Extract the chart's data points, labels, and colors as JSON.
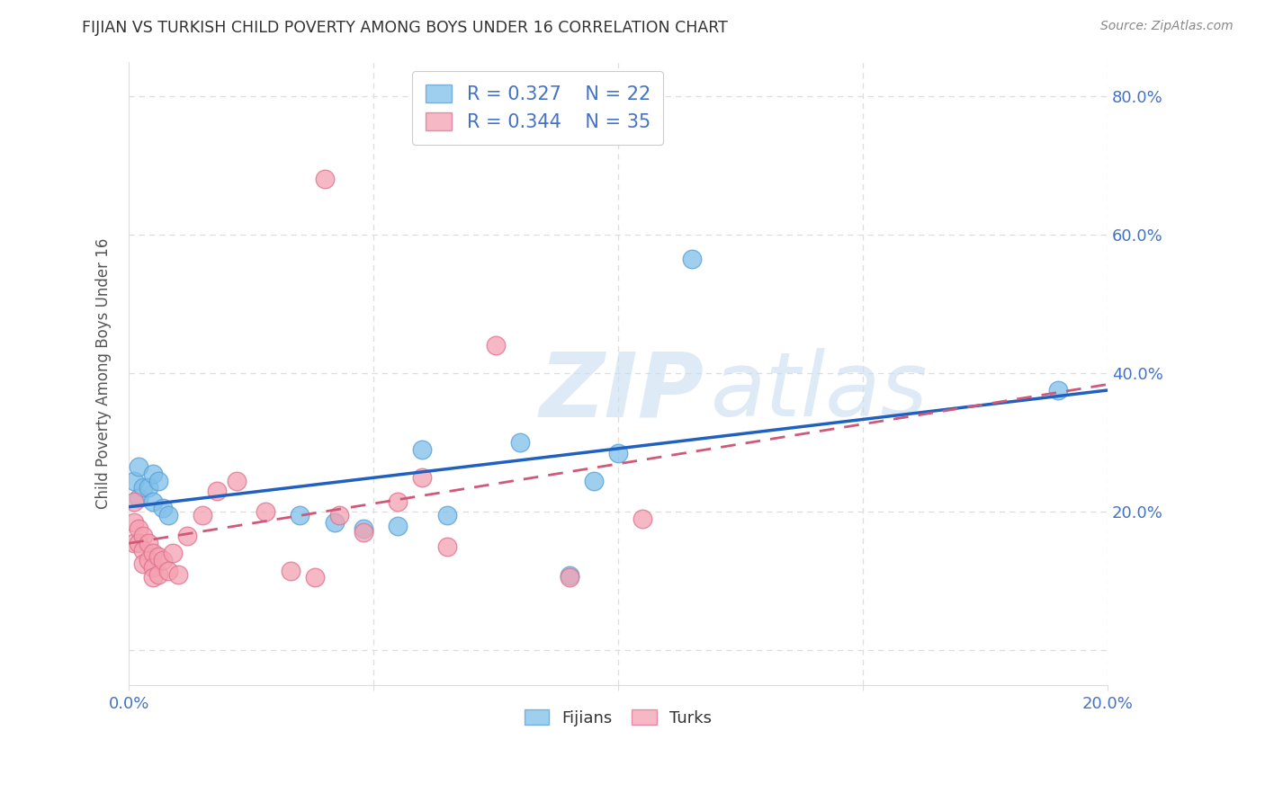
{
  "title": "FIJIAN VS TURKISH CHILD POVERTY AMONG BOYS UNDER 16 CORRELATION CHART",
  "source": "Source: ZipAtlas.com",
  "ylabel": "Child Poverty Among Boys Under 16",
  "background_color": "#ffffff",
  "fijian_color": "#7fbfea",
  "fijian_color_edge": "#5a9fd4",
  "turkish_color": "#f4a0b0",
  "turkish_color_edge": "#e07090",
  "fijian_line_color": "#2060c0",
  "turkish_line_color": "#d05878",
  "legend_fijian_R": "0.327",
  "legend_fijian_N": "22",
  "legend_turkish_R": "0.344",
  "legend_turkish_N": "35",
  "fijian_x": [
    0.001,
    0.002,
    0.002,
    0.003,
    0.004,
    0.005,
    0.005,
    0.006,
    0.007,
    0.008,
    0.035,
    0.042,
    0.048,
    0.055,
    0.06,
    0.065,
    0.08,
    0.09,
    0.095,
    0.1,
    0.115,
    0.19
  ],
  "fijian_y": [
    0.245,
    0.22,
    0.265,
    0.235,
    0.235,
    0.215,
    0.255,
    0.245,
    0.205,
    0.195,
    0.195,
    0.185,
    0.175,
    0.18,
    0.29,
    0.195,
    0.3,
    0.108,
    0.245,
    0.285,
    0.565,
    0.375
  ],
  "turkish_x": [
    0.001,
    0.001,
    0.001,
    0.002,
    0.002,
    0.003,
    0.003,
    0.003,
    0.004,
    0.004,
    0.005,
    0.005,
    0.005,
    0.006,
    0.006,
    0.007,
    0.008,
    0.009,
    0.01,
    0.012,
    0.015,
    0.018,
    0.022,
    0.028,
    0.033,
    0.038,
    0.043,
    0.048,
    0.055,
    0.06,
    0.065,
    0.075,
    0.09,
    0.105,
    0.04
  ],
  "turkish_y": [
    0.215,
    0.185,
    0.155,
    0.175,
    0.155,
    0.165,
    0.145,
    0.125,
    0.155,
    0.13,
    0.14,
    0.12,
    0.105,
    0.135,
    0.11,
    0.13,
    0.115,
    0.14,
    0.11,
    0.165,
    0.195,
    0.23,
    0.245,
    0.2,
    0.115,
    0.105,
    0.195,
    0.17,
    0.215,
    0.25,
    0.15,
    0.44,
    0.105,
    0.19,
    0.68
  ],
  "xlim": [
    0.0,
    0.2
  ],
  "ylim": [
    -0.05,
    0.85
  ],
  "ytick_vals": [
    0.0,
    0.2,
    0.4,
    0.6,
    0.8
  ],
  "ytick_labels": [
    "",
    "20.0%",
    "40.0%",
    "60.0%",
    "80.0%"
  ],
  "xtick_vals": [
    0.0,
    0.05,
    0.1,
    0.15,
    0.2
  ],
  "xtick_labels": [
    "0.0%",
    "",
    "",
    "",
    "20.0%"
  ],
  "grid_color": "#dddddd",
  "tick_color": "#4472c4",
  "title_color": "#333333",
  "source_color": "#888888",
  "ylabel_color": "#555555",
  "watermark_color": "#c8dff0"
}
